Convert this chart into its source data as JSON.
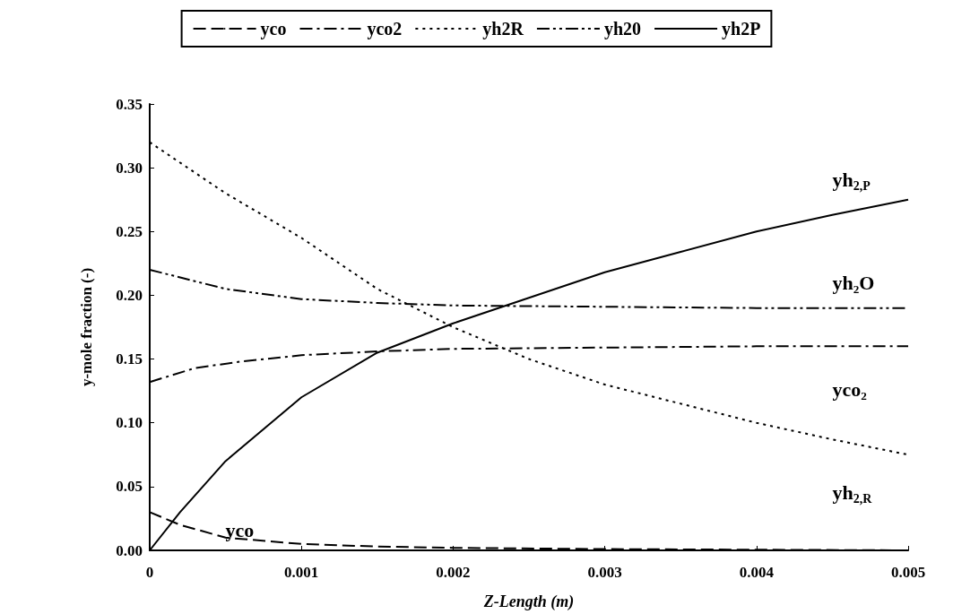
{
  "chart_data": {
    "type": "line",
    "xlabel": "Z-Length (m)",
    "ylabel": "y-mole fraction (-)",
    "xlim": [
      0,
      0.005
    ],
    "xticks": [
      0,
      0.001,
      0.002,
      0.003,
      0.004,
      0.005
    ],
    "ylim": [
      0,
      0.35
    ],
    "yticks": [
      {
        "value": 0,
        "label": "0.00"
      },
      {
        "value": 0.05,
        "label": "0.05"
      },
      {
        "value": 0.1,
        "label": "0.10"
      },
      {
        "value": 0.15,
        "label": "0.15"
      },
      {
        "value": 0.2,
        "label": "0.20"
      },
      {
        "value": 0.25,
        "label": "0.25"
      },
      {
        "value": 0.3,
        "label": "0.30"
      },
      {
        "value": 0.35,
        "label": "0.35"
      }
    ],
    "grid": false,
    "legend": "top",
    "marker": "none",
    "series": [
      {
        "name": "yco",
        "color": "#000000",
        "line_style": "dashed",
        "x": [
          0,
          0.0002,
          0.0005,
          0.001,
          0.0015,
          0.002,
          0.003,
          0.004,
          0.005
        ],
        "values": [
          0.03,
          0.02,
          0.01,
          0.005,
          0.003,
          0.002,
          0.001,
          0.0005,
          0
        ]
      },
      {
        "name": "yco2",
        "color": "#000000",
        "line_style": "dashdot",
        "x": [
          0,
          0.0003,
          0.0006,
          0.001,
          0.0015,
          0.002,
          0.003,
          0.004,
          0.005
        ],
        "values": [
          0.132,
          0.143,
          0.148,
          0.153,
          0.156,
          0.158,
          0.159,
          0.16,
          0.16
        ]
      },
      {
        "name": "yh2R",
        "color": "#000000",
        "line_style": "dotted",
        "x": [
          0,
          0.0005,
          0.001,
          0.0015,
          0.002,
          0.0025,
          0.003,
          0.0035,
          0.004,
          0.0045,
          0.005
        ],
        "values": [
          0.32,
          0.28,
          0.245,
          0.205,
          0.175,
          0.15,
          0.13,
          0.115,
          0.1,
          0.087,
          0.075
        ]
      },
      {
        "name": "yh20",
        "color": "#000000",
        "line_style": "dashdotdot",
        "x": [
          0,
          0.0005,
          0.001,
          0.0015,
          0.002,
          0.003,
          0.004,
          0.005
        ],
        "values": [
          0.22,
          0.205,
          0.197,
          0.194,
          0.192,
          0.191,
          0.19,
          0.19
        ]
      },
      {
        "name": "yh2P",
        "color": "#000000",
        "line_style": "solid",
        "x": [
          0,
          0.0002,
          0.0005,
          0.001,
          0.0015,
          0.002,
          0.0025,
          0.003,
          0.0035,
          0.004,
          0.0045,
          0.005
        ],
        "values": [
          0,
          0.03,
          0.07,
          0.12,
          0.155,
          0.178,
          0.198,
          0.218,
          0.234,
          0.25,
          0.263,
          0.275
        ]
      }
    ],
    "annotations": [
      "yh$_{2,P}$",
      "yh₂O",
      "yco₂",
      "yh$_{2,R}$",
      "yco"
    ]
  }
}
